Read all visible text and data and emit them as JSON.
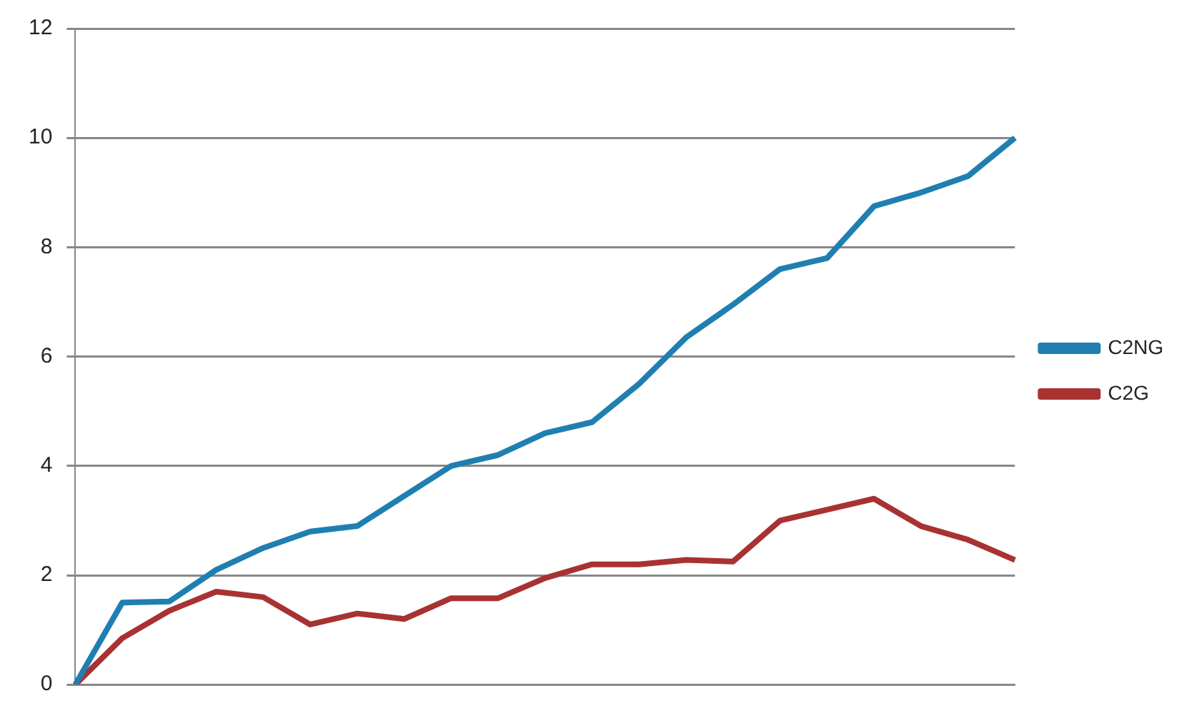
{
  "chart_data": {
    "type": "line",
    "categories": [
      null,
      null,
      null,
      null,
      null,
      null,
      null,
      null,
      null,
      null,
      null,
      null,
      null,
      null,
      null,
      null,
      null,
      null,
      null,
      null,
      null
    ],
    "series": [
      {
        "name": "C2NG",
        "color": "#1f7fb0",
        "values": [
          0,
          1.5,
          1.52,
          2.1,
          2.5,
          2.8,
          2.9,
          3.45,
          4.0,
          4.2,
          4.6,
          4.8,
          5.5,
          6.35,
          6.95,
          7.6,
          7.8,
          8.75,
          9.0,
          9.3,
          10.0
        ]
      },
      {
        "name": "C2G",
        "color": "#a83232",
        "values": [
          0,
          0.85,
          1.35,
          1.7,
          1.6,
          1.1,
          1.3,
          1.2,
          1.58,
          1.58,
          1.95,
          2.2,
          2.2,
          2.28,
          2.25,
          3.0,
          3.2,
          3.4,
          2.9,
          2.65,
          2.28
        ]
      }
    ],
    "ylim": [
      0,
      12
    ],
    "yticks": [
      0,
      2,
      4,
      6,
      8,
      10,
      12
    ],
    "grid": "y",
    "legend": "right",
    "marker": "none",
    "line_style": "solid"
  }
}
